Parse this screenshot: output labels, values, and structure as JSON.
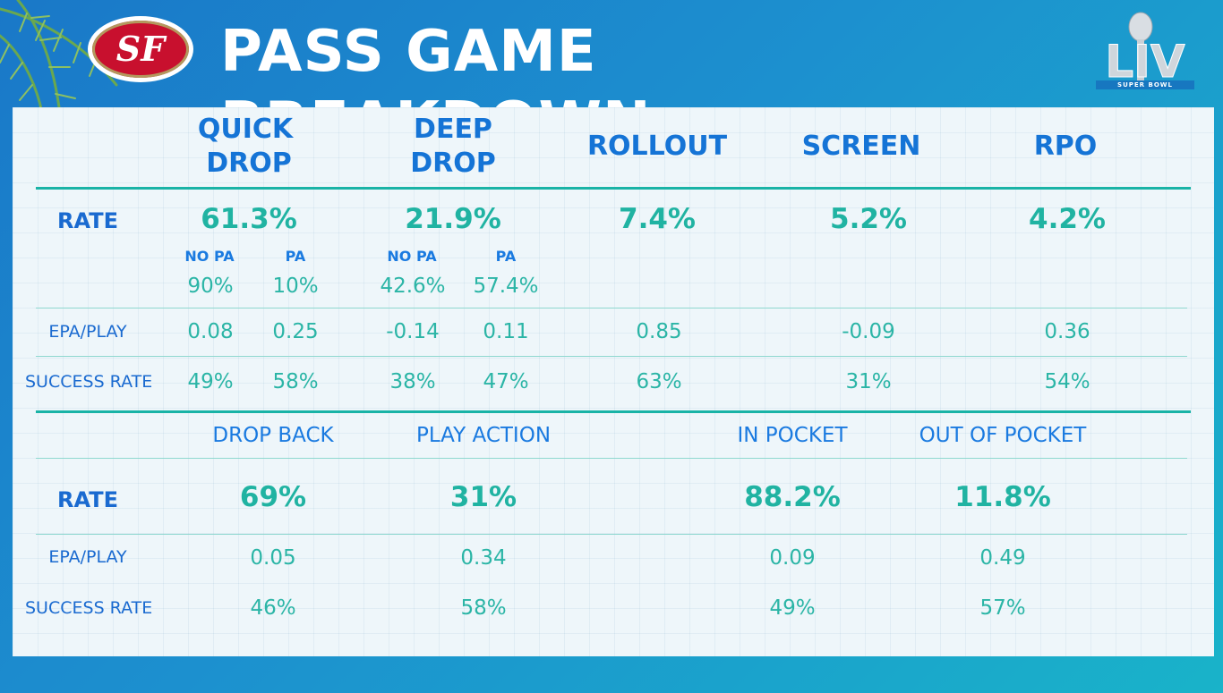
{
  "header": {
    "title": "PASS GAME BREAKDOWN",
    "team_logo_text": "SF",
    "event_logo_text": "LIV",
    "event_logo_caption": "SUPER BOWL"
  },
  "colors": {
    "header_bg_start": "#1a78c8",
    "header_bg_end": "#19b3c9",
    "heading_blue": "#1574d6",
    "value_teal": "#20b3a2",
    "logo_red": "#c8102e",
    "logo_gold": "#b3995d"
  },
  "icons": [
    "palm-leaves-icon",
    "49ers-logo-icon",
    "super-bowl-trophy-icon"
  ],
  "top_table": {
    "columns": [
      {
        "l1": "QUICK",
        "l2": "DROP"
      },
      {
        "l1": "DEEP",
        "l2": "DROP"
      },
      {
        "label": "ROLLOUT"
      },
      {
        "label": "SCREEN"
      },
      {
        "label": "RPO"
      }
    ],
    "rate_label": "RATE",
    "rates": [
      "61.3%",
      "21.9%",
      "7.4%",
      "5.2%",
      "4.2%"
    ],
    "split_labels": {
      "no_pa": "NO PA",
      "pa": "PA"
    },
    "quick_split": {
      "no_pa": "90%",
      "pa": "10%"
    },
    "deep_split": {
      "no_pa": "42.6%",
      "pa": "57.4%"
    },
    "epa_label": "EPA/PLAY",
    "epa": {
      "quick_no_pa": "0.08",
      "quick_pa": "0.25",
      "deep_no_pa": "-0.14",
      "deep_pa": "0.11",
      "rollout": "0.85",
      "screen": "-0.09",
      "rpo": "0.36"
    },
    "success_label": "SUCCESS RATE",
    "success": {
      "quick_no_pa": "49%",
      "quick_pa": "58%",
      "deep_no_pa": "38%",
      "deep_pa": "47%",
      "rollout": "63%",
      "screen": "31%",
      "rpo": "54%"
    }
  },
  "bottom_table": {
    "columns": [
      "DROP BACK",
      "PLAY ACTION",
      "IN POCKET",
      "OUT OF POCKET"
    ],
    "rate_label": "RATE",
    "rates": [
      "69%",
      "31%",
      "88.2%",
      "11.8%"
    ],
    "epa_label": "EPA/PLAY",
    "epa": [
      "0.05",
      "0.34",
      "0.09",
      "0.49"
    ],
    "success_label": "SUCCESS RATE",
    "success": [
      "46%",
      "58%",
      "49%",
      "57%"
    ]
  }
}
